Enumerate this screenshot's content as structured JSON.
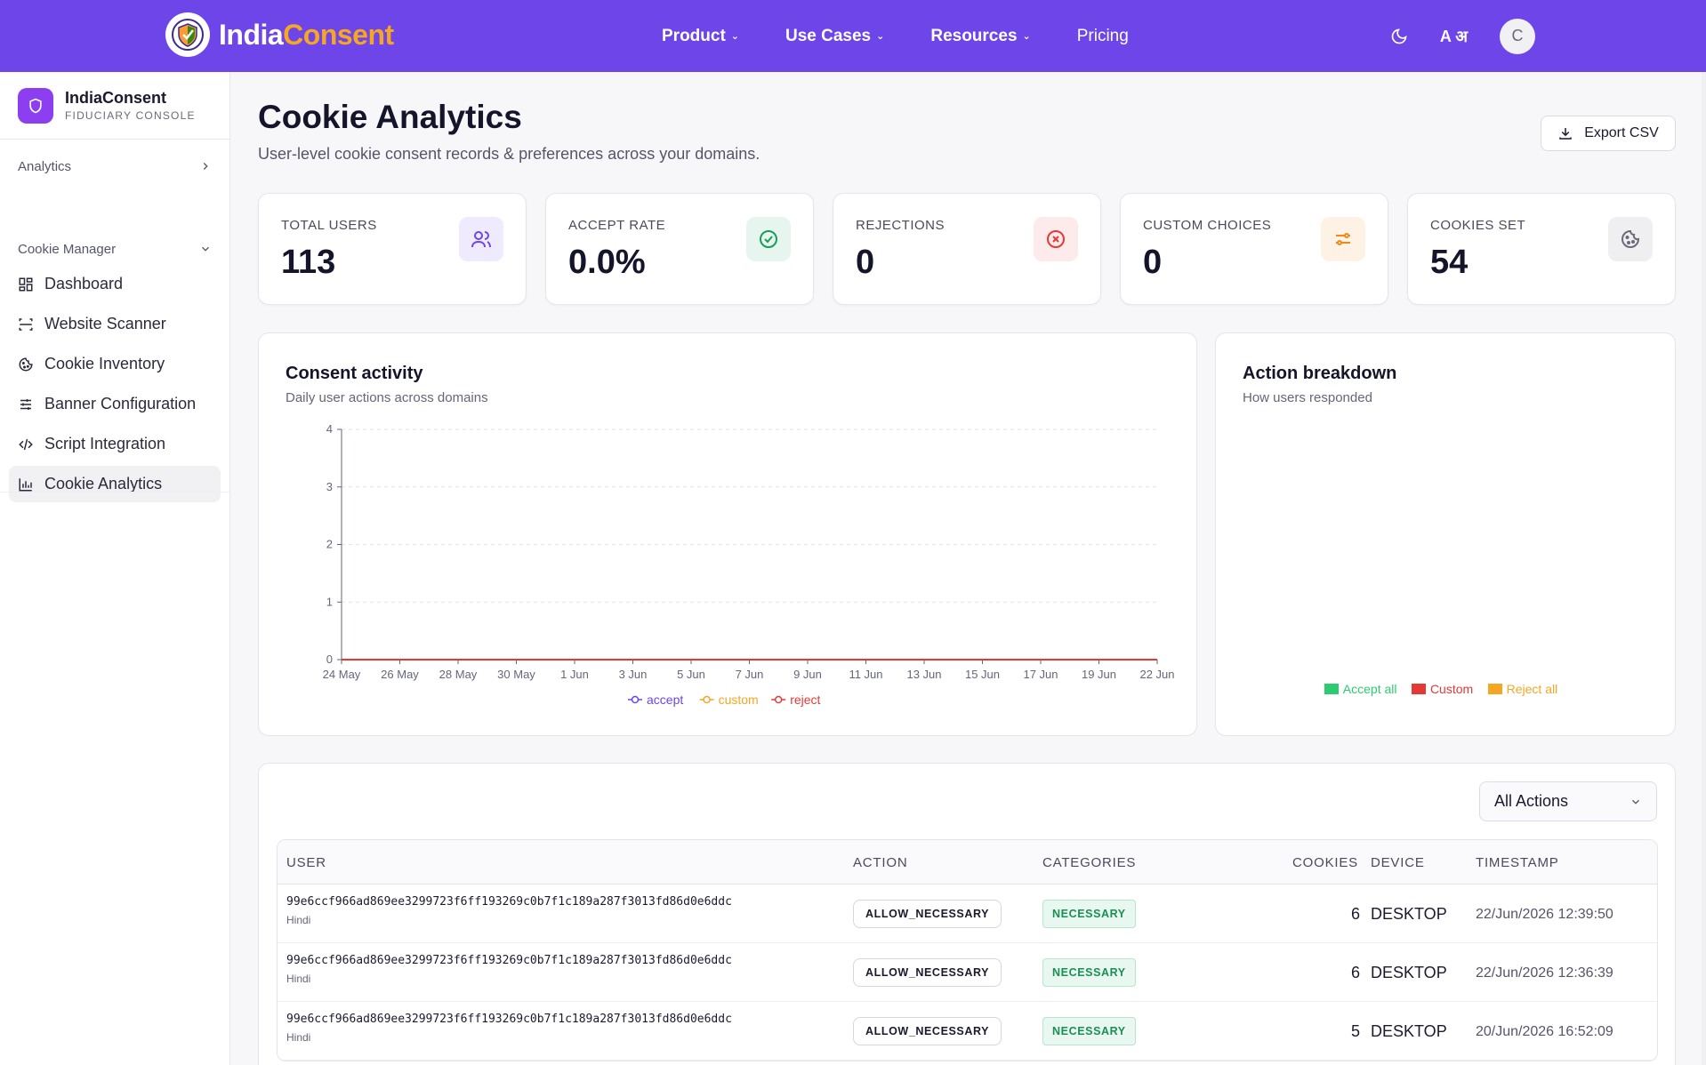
{
  "nav": {
    "brand_primary": "India",
    "brand_accent": "Consent",
    "links": [
      {
        "label": "Product",
        "has_dropdown": true
      },
      {
        "label": "Use Cases",
        "has_dropdown": true
      },
      {
        "label": "Resources",
        "has_dropdown": true
      },
      {
        "label": "Pricing",
        "has_dropdown": false
      }
    ],
    "lang_label": "A अ",
    "avatar_initial": "C",
    "bar_color": "#6d45e8",
    "accent_color": "#f5a623"
  },
  "sidebar": {
    "title": "IndiaConsent",
    "subtitle": "FIDUCIARY CONSOLE",
    "analytics_label": "Analytics",
    "section_label": "Cookie Manager",
    "items": [
      {
        "label": "Dashboard",
        "icon": "dashboard-icon",
        "active": false
      },
      {
        "label": "Website Scanner",
        "icon": "scan-icon",
        "active": false
      },
      {
        "label": "Cookie Inventory",
        "icon": "cookie-icon",
        "active": false
      },
      {
        "label": "Banner Configuration",
        "icon": "sliders-icon",
        "active": false
      },
      {
        "label": "Script Integration",
        "icon": "code-icon",
        "active": false
      },
      {
        "label": "Cookie Analytics",
        "icon": "bar-chart-icon",
        "active": true
      }
    ]
  },
  "page": {
    "title": "Cookie Analytics",
    "subtitle": "User-level cookie consent records & preferences across your domains.",
    "export_label": "Export CSV"
  },
  "stats": [
    {
      "label": "TOTAL USERS",
      "value": "113",
      "icon": "users-icon",
      "icon_bg": "#efeafd",
      "icon_color": "#6d45e8"
    },
    {
      "label": "ACCEPT RATE",
      "value": "0.0%",
      "icon": "check-circle-icon",
      "icon_bg": "#e6f6ee",
      "icon_color": "#1a9c5a"
    },
    {
      "label": "REJECTIONS",
      "value": "0",
      "icon": "x-circle-icon",
      "icon_bg": "#fdeaea",
      "icon_color": "#e53935"
    },
    {
      "label": "CUSTOM CHOICES",
      "value": "0",
      "icon": "sliders-icon",
      "icon_bg": "#fdf2e3",
      "icon_color": "#ef8a1a"
    },
    {
      "label": "COOKIES SET",
      "value": "54",
      "icon": "cookie-icon",
      "icon_bg": "#efeff2",
      "icon_color": "#6a6a7a"
    }
  ],
  "activity": {
    "title": "Consent activity",
    "subtitle": "Daily user actions across domains"
  },
  "breakdown": {
    "title": "Action breakdown",
    "subtitle": "How users responded",
    "legend": [
      {
        "label": "Accept all",
        "color": "#2ecc71"
      },
      {
        "label": "Custom",
        "color": "#e53935"
      },
      {
        "label": "Reject all",
        "color": "#f5a623"
      }
    ]
  },
  "chart_data": {
    "type": "line",
    "x": [
      "24 May",
      "26 May",
      "28 May",
      "30 May",
      "1 Jun",
      "3 Jun",
      "5 Jun",
      "7 Jun",
      "9 Jun",
      "11 Jun",
      "13 Jun",
      "15 Jun",
      "17 Jun",
      "19 Jun",
      "22 Jun"
    ],
    "series": [
      {
        "name": "accept",
        "color": "#6d45e8",
        "values": [
          0,
          0,
          0,
          0,
          0,
          0,
          0,
          0,
          0,
          0,
          0,
          0,
          0,
          0,
          0
        ]
      },
      {
        "name": "custom",
        "color": "#f5a623",
        "values": [
          0,
          0,
          0,
          0,
          0,
          0,
          0,
          0,
          0,
          0,
          0,
          0,
          0,
          0,
          0
        ]
      },
      {
        "name": "reject",
        "color": "#e53935",
        "values": [
          0,
          0,
          0,
          0,
          0,
          0,
          0,
          0,
          0,
          0,
          0,
          0,
          0,
          0,
          0
        ]
      }
    ],
    "y_ticks": [
      0,
      1,
      2,
      3,
      4
    ],
    "ylim": [
      0,
      4
    ],
    "grid": true,
    "legend_position": "bottom"
  },
  "table": {
    "filter_label": "All Actions",
    "columns": [
      "USER",
      "ACTION",
      "CATEGORIES",
      "COOKIES",
      "DEVICE",
      "TIMESTAMP"
    ],
    "rows": [
      {
        "user": "99e6ccf966ad869ee3299723f6ff193269c0b7f1c189a287f3013fd86d0e6ddc",
        "lang": "Hindi",
        "action": "ALLOW_NECESSARY",
        "category": "NECESSARY",
        "cookies": "6",
        "device": "DESKTOP",
        "timestamp": "22/Jun/2026 12:39:50"
      },
      {
        "user": "99e6ccf966ad869ee3299723f6ff193269c0b7f1c189a287f3013fd86d0e6ddc",
        "lang": "Hindi",
        "action": "ALLOW_NECESSARY",
        "category": "NECESSARY",
        "cookies": "6",
        "device": "DESKTOP",
        "timestamp": "22/Jun/2026 12:36:39"
      },
      {
        "user": "99e6ccf966ad869ee3299723f6ff193269c0b7f1c189a287f3013fd86d0e6ddc",
        "lang": "Hindi",
        "action": "ALLOW_NECESSARY",
        "category": "NECESSARY",
        "cookies": "5",
        "device": "DESKTOP",
        "timestamp": "20/Jun/2026 16:52:09"
      }
    ]
  }
}
